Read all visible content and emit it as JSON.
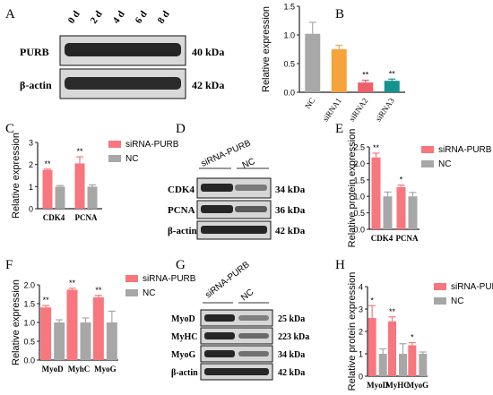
{
  "panels": {
    "A": {
      "letter": "A",
      "lanes": [
        "0 d",
        "2 d",
        "4 d",
        "6 d",
        "8 d"
      ],
      "rows": [
        {
          "label": "PURB",
          "kda": "40 kDa"
        },
        {
          "label": "β-actin",
          "kda": "42 kDa"
        }
      ]
    },
    "D": {
      "letter": "D",
      "group_labels": [
        "siRNA-PURB",
        "NC"
      ],
      "rows": [
        {
          "label": "CDK4",
          "kda": "34 kDa"
        },
        {
          "label": "PCNA",
          "kda": "36 kDa"
        },
        {
          "label": "β-actin",
          "kda": "42 kDa"
        }
      ]
    },
    "G": {
      "letter": "G",
      "group_labels": [
        "siRNA-PURB",
        "NC"
      ],
      "rows": [
        {
          "label": "MyoD",
          "kda": "25 kDa"
        },
        {
          "label": "MyHC",
          "kda": "223 kDa"
        },
        {
          "label": "MyoG",
          "kda": "34 kDa"
        },
        {
          "label": "β-actin",
          "kda": "42 kDa"
        }
      ]
    }
  },
  "chart_data": [
    {
      "id": "B",
      "letter": "B",
      "type": "bar",
      "ylabel": "Relative expression",
      "ylim": [
        0,
        1.5
      ],
      "yticks": [
        "0.0",
        "0.5",
        "1.0",
        "1.5"
      ],
      "categories": [
        "NC",
        "siRNA1",
        "siRNA2",
        "siRNA3"
      ],
      "values": [
        1.02,
        0.75,
        0.17,
        0.2
      ],
      "errors": [
        0.2,
        0.07,
        0.04,
        0.03
      ],
      "colors": [
        "#a8a8a8",
        "#f5a33a",
        "#ee5f6b",
        "#14928f"
      ],
      "significance": [
        "",
        "",
        "**",
        "**"
      ]
    },
    {
      "id": "C",
      "letter": "C",
      "type": "bar",
      "ylabel": "Relative expression",
      "ylim": [
        0,
        3
      ],
      "yticks": [
        "0",
        "1",
        "2",
        "3"
      ],
      "categories": [
        "CDK4",
        "PCNA"
      ],
      "series": [
        {
          "name": "siRNA-PURB",
          "color": "#f8767e",
          "values": [
            1.75,
            2.05
          ],
          "errors": [
            0.04,
            0.3
          ]
        },
        {
          "name": "NC",
          "color": "#a7a7a7",
          "values": [
            1.0,
            1.0
          ],
          "errors": [
            0.05,
            0.08
          ]
        }
      ],
      "significance": [
        "**",
        "**"
      ]
    },
    {
      "id": "E",
      "letter": "E",
      "type": "bar",
      "ylabel": "Relative protein expression",
      "ylim": [
        0,
        2.5
      ],
      "yticks": [
        "0.0",
        "0.5",
        "1.0",
        "1.5",
        "2.0",
        "2.5"
      ],
      "categories": [
        "CDK4",
        "PCNA"
      ],
      "series": [
        {
          "name": "siRNA-PURB",
          "color": "#f8767e",
          "values": [
            2.18,
            1.28
          ],
          "errors": [
            0.13,
            0.06
          ]
        },
        {
          "name": "NC",
          "color": "#a7a7a7",
          "values": [
            1.0,
            1.0
          ],
          "errors": [
            0.13,
            0.12
          ]
        }
      ],
      "significance": [
        "**",
        "*"
      ]
    },
    {
      "id": "F",
      "letter": "F",
      "type": "bar",
      "ylabel": "Relative expression",
      "ylim": [
        0,
        2.0
      ],
      "yticks": [
        "0.0",
        "0.5",
        "1.0",
        "1.5",
        "2.0"
      ],
      "categories": [
        "MyoD",
        "MyhC",
        "MyoG"
      ],
      "series": [
        {
          "name": "siRNA-PURB",
          "color": "#f8767e",
          "values": [
            1.4,
            1.87,
            1.67
          ],
          "errors": [
            0.05,
            0.04,
            0.05
          ]
        },
        {
          "name": "NC",
          "color": "#a7a7a7",
          "values": [
            1.0,
            1.0,
            1.0
          ],
          "errors": [
            0.07,
            0.12,
            0.3
          ]
        }
      ],
      "significance": [
        "**",
        "**",
        "**"
      ]
    },
    {
      "id": "H",
      "letter": "H",
      "type": "bar",
      "ylabel": "Relative protein expression",
      "ylim": [
        0,
        4
      ],
      "yticks": [
        "0",
        "1",
        "2",
        "3",
        "4"
      ],
      "categories": [
        "MyoD",
        "MyHC",
        "MyoG"
      ],
      "series": [
        {
          "name": "siRNA-PURB",
          "color": "#f8767e",
          "values": [
            2.6,
            2.45,
            1.38
          ],
          "errors": [
            0.55,
            0.2,
            0.12
          ]
        },
        {
          "name": "NC",
          "color": "#a7a7a7",
          "values": [
            1.0,
            1.0,
            1.0
          ],
          "errors": [
            0.22,
            0.45,
            0.08
          ]
        }
      ],
      "significance": [
        "*",
        "**",
        "*"
      ]
    }
  ]
}
